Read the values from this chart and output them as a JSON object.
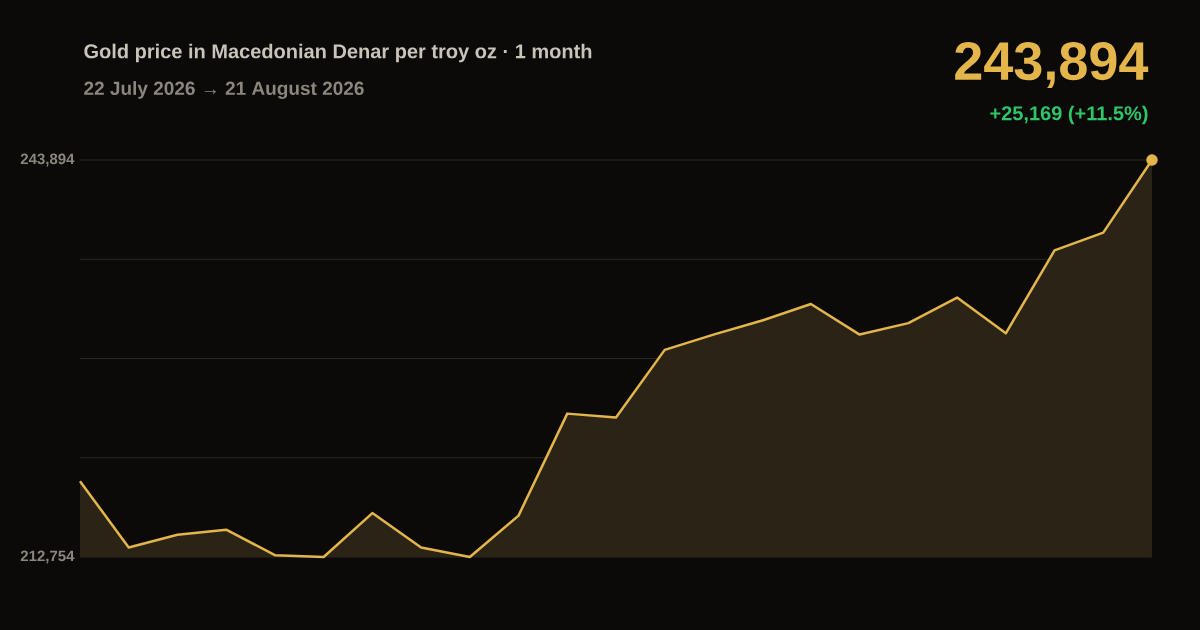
{
  "chart_data": {
    "type": "area",
    "title": "Gold price in Macedonian Denar per troy oz · 1 month",
    "subtitle": "22 July 2026 → 21 August 2026",
    "categories": [
      null,
      null,
      null,
      null,
      null,
      null,
      null,
      null,
      null,
      null,
      null,
      null,
      null,
      null,
      null,
      null,
      null,
      null,
      null,
      null,
      null,
      null,
      null
    ],
    "values": [
      218700,
      213500,
      214500,
      214900,
      212900,
      212754,
      216200,
      213500,
      212754,
      216000,
      224000,
      223700,
      229000,
      230200,
      231300,
      232600,
      230200,
      231100,
      233100,
      230300,
      236800,
      238200,
      243894
    ],
    "color": "#e3b54a",
    "ylim": [
      212754,
      243894
    ],
    "yticks": [
      {
        "value": 212754,
        "label": "212,754"
      },
      {
        "value": 220539,
        "label": null
      },
      {
        "value": 228324,
        "label": null
      },
      {
        "value": 236109,
        "label": null
      },
      {
        "value": 243894,
        "label": "243,894"
      }
    ],
    "grid": "y",
    "annotations": [
      "243,894",
      "+25,169 (+11.5%)"
    ]
  }
}
